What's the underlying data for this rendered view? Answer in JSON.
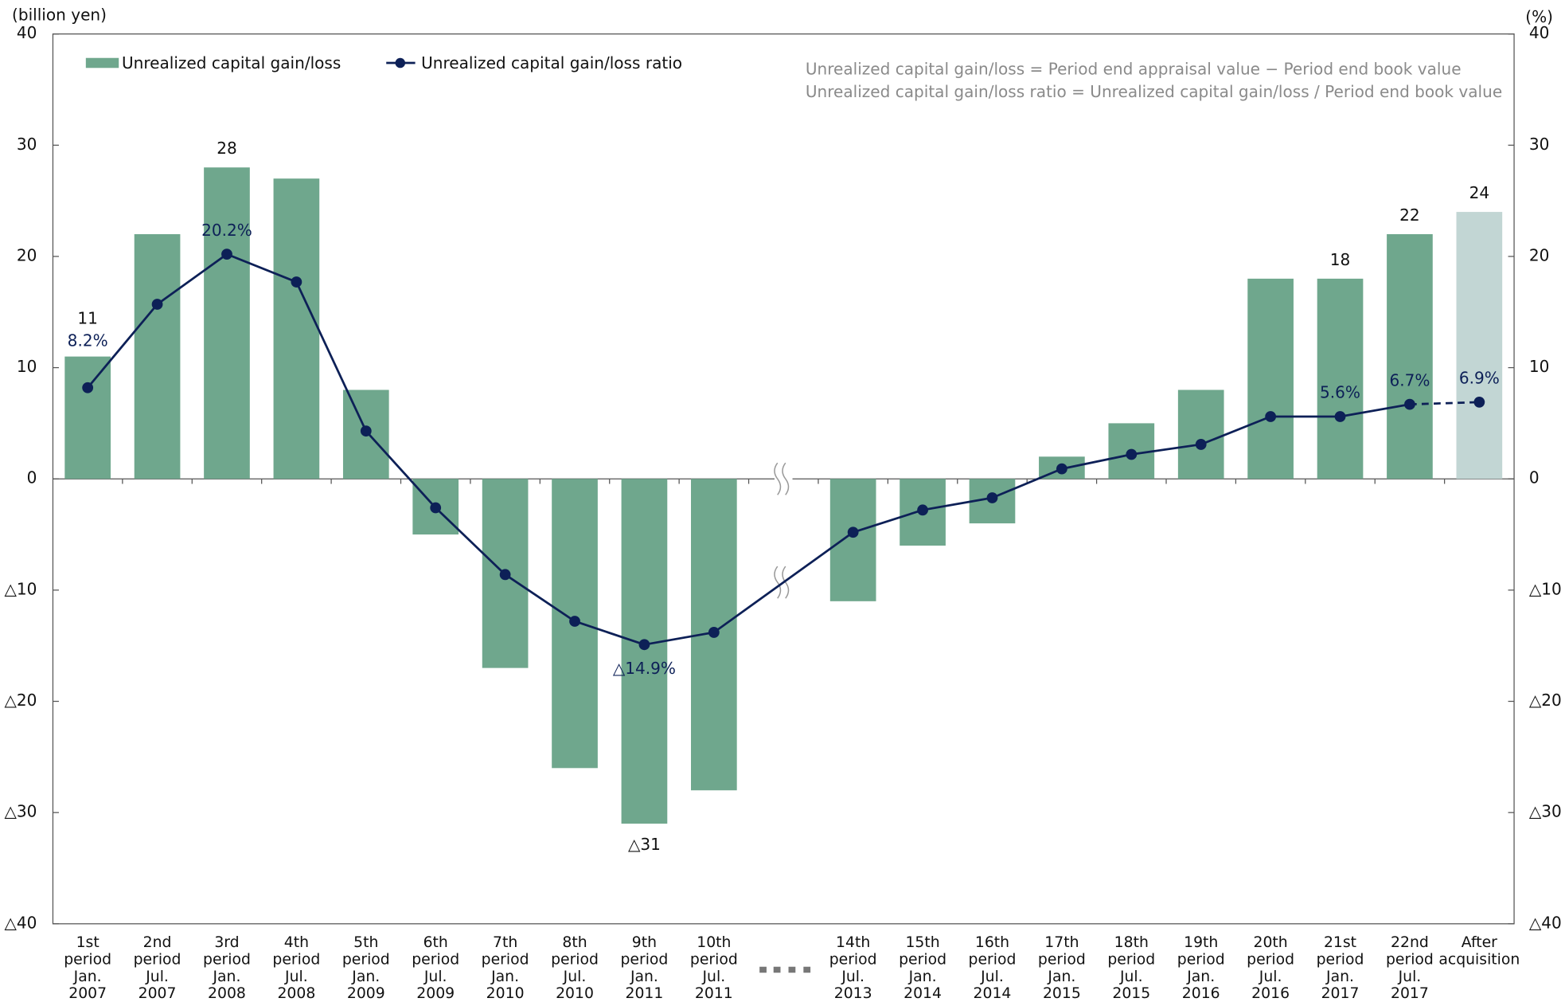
{
  "chart_data": {
    "type": "bar-line",
    "y_axis_label": "(billion yen)",
    "y2_axis_label": "(%)",
    "annotations": [
      "Unrealized capital gain/loss = Period end appraisal value − Period end book value",
      "Unrealized capital gain/loss ratio = Unrealized capital gain/loss / Period end book value"
    ],
    "categories": [
      [
        "1st",
        "period",
        "Jan.",
        "2007"
      ],
      [
        "2nd",
        "period",
        "Jul.",
        "2007"
      ],
      [
        "3rd",
        "period",
        "Jan.",
        "2008"
      ],
      [
        "4th",
        "period",
        "Jul.",
        "2008"
      ],
      [
        "5th",
        "period",
        "Jan.",
        "2009"
      ],
      [
        "6th",
        "period",
        "Jul.",
        "2009"
      ],
      [
        "7th",
        "period",
        "Jan.",
        "2010"
      ],
      [
        "8th",
        "period",
        "Jul.",
        "2010"
      ],
      [
        "9th",
        "period",
        "Jan.",
        "2011"
      ],
      [
        "10th",
        "period",
        "Jul.",
        "2011"
      ],
      null,
      [
        "14th",
        "period",
        "Jul.",
        "2013"
      ],
      [
        "15th",
        "period",
        "Jan.",
        "2014"
      ],
      [
        "16th",
        "period",
        "Jul.",
        "2014"
      ],
      [
        "17th",
        "period",
        "Jan.",
        "2015"
      ],
      [
        "18th",
        "period",
        "Jul.",
        "2015"
      ],
      [
        "19th",
        "period",
        "Jan.",
        "2016"
      ],
      [
        "20th",
        "period",
        "Jul.",
        "2016"
      ],
      [
        "21st",
        "period",
        "Jan.",
        "2017"
      ],
      [
        "22nd",
        "period",
        "Jul.",
        "2017"
      ],
      [
        "After",
        "acquisition"
      ]
    ],
    "series": [
      {
        "name": "Unrealized capital gain/loss",
        "color": "#6fa78d",
        "colors": [
          "#6fa78d",
          "#6fa78d",
          "#6fa78d",
          "#6fa78d",
          "#6fa78d",
          "#6fa78d",
          "#6fa78d",
          "#6fa78d",
          "#6fa78d",
          "#6fa78d",
          null,
          "#6fa78d",
          "#6fa78d",
          "#6fa78d",
          "#6fa78d",
          "#6fa78d",
          "#6fa78d",
          "#6fa78d",
          "#6fa78d",
          "#6fa78d",
          "#c2d6d4"
        ],
        "values": [
          11,
          22,
          28,
          27,
          8,
          -5,
          -17,
          -26,
          -31,
          -28,
          null,
          -11,
          -6,
          -4,
          2,
          5,
          8,
          18,
          18,
          22,
          24
        ],
        "value_labels": [
          "11",
          null,
          "28",
          null,
          null,
          null,
          null,
          null,
          "△31",
          null,
          null,
          null,
          null,
          null,
          null,
          null,
          null,
          null,
          "18",
          "22",
          "24"
        ]
      },
      {
        "name": "Unrealized capital gain/loss ratio",
        "color": "#0d2057",
        "axis": "y2",
        "values": [
          8.2,
          15.7,
          20.2,
          17.7,
          4.3,
          -2.6,
          -8.6,
          -12.8,
          -14.9,
          -13.8,
          null,
          -4.8,
          -2.8,
          -1.7,
          0.9,
          2.2,
          3.1,
          5.6,
          5.6,
          6.7,
          6.9
        ],
        "value_labels": [
          "8.2%",
          null,
          "20.2%",
          null,
          null,
          null,
          null,
          null,
          "△14.9%",
          null,
          null,
          null,
          null,
          null,
          null,
          null,
          null,
          null,
          "5.6%",
          "6.7%",
          "6.9%"
        ],
        "dashed_last_segment": true
      }
    ],
    "ylim": [
      -40,
      40
    ],
    "yticks": [
      {
        "value": -40,
        "label": "△40"
      },
      {
        "value": -30,
        "label": "△30"
      },
      {
        "value": -20,
        "label": "△20"
      },
      {
        "value": -10,
        "label": "△10"
      },
      0,
      10,
      20,
      30,
      40
    ],
    "y2lim": [
      -40,
      40
    ],
    "y2ticks": [
      {
        "value": -40,
        "label": "△40"
      },
      {
        "value": -30,
        "label": "△30"
      },
      {
        "value": -20,
        "label": "△20"
      },
      {
        "value": -10,
        "label": "△10"
      },
      0,
      10,
      20,
      30,
      40
    ],
    "legend": "top-left"
  }
}
